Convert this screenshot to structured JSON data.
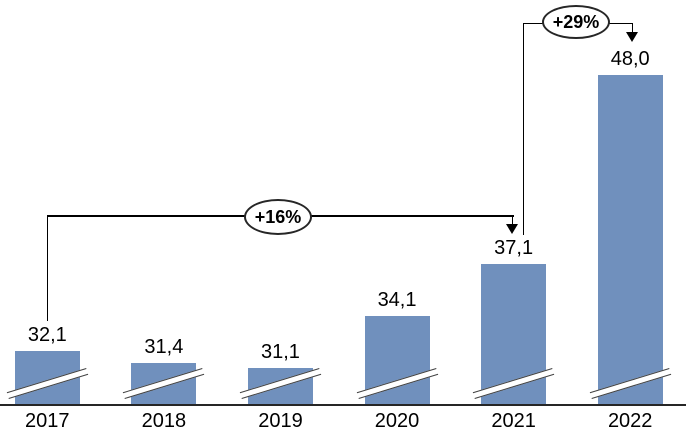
{
  "chart_data": {
    "type": "bar",
    "title": "",
    "xlabel": "",
    "ylabel": "",
    "categories": [
      "2017",
      "2018",
      "2019",
      "2020",
      "2021",
      "2022"
    ],
    "values": [
      32.1,
      31.4,
      31.1,
      34.1,
      37.1,
      48.0
    ],
    "value_labels": [
      "32,1",
      "31,4",
      "31,1",
      "34,1",
      "37,1",
      "48,0"
    ],
    "bar_color": "#7090BD",
    "line_color": "#000000",
    "axis_line_color": "#262626",
    "break_line_color": "#404040",
    "grid": false,
    "legend": false,
    "axis_break": true,
    "axis_break_on_every_bar": true,
    "value_axis_hidden": true,
    "implied_value_offset_at_baseline": 29.0,
    "annotations": [
      {
        "label": "+16%",
        "from": "2017",
        "to": "2021"
      },
      {
        "label": "+29%",
        "from": "2021",
        "to": "2022"
      }
    ]
  }
}
